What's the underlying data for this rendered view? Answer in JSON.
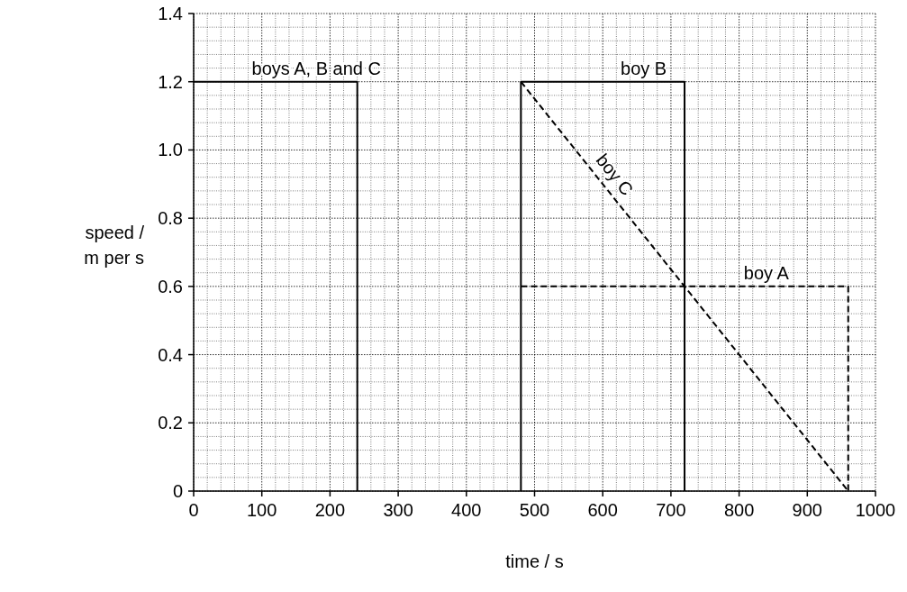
{
  "chart_data": {
    "type": "line",
    "xlabel": "time / s",
    "ylabel": "speed / m per s",
    "xlim": [
      0,
      1000
    ],
    "ylim": [
      0,
      1.4
    ],
    "xticks": [
      0,
      100,
      200,
      300,
      400,
      500,
      600,
      700,
      800,
      900,
      1000
    ],
    "yticks": [
      0,
      {
        "value": 0.2,
        "label": "0.2"
      },
      {
        "value": 0.4,
        "label": "0.4"
      },
      {
        "value": 0.6,
        "label": "0.6"
      },
      {
        "value": 0.8,
        "label": "0.8"
      },
      {
        "value": 1.0,
        "label": "1.0"
      },
      {
        "value": 1.2,
        "label": "1.2"
      },
      {
        "value": 1.4,
        "label": "1.4"
      }
    ],
    "grid": true,
    "marker": "none",
    "series": [
      {
        "name": "boys A, B and C",
        "color": "#000000",
        "line_style": "solid",
        "x": [
          0,
          240,
          240
        ],
        "values": [
          1.2,
          1.2,
          0
        ]
      },
      {
        "name": "boy B",
        "color": "#000000",
        "line_style": "solid",
        "x": [
          480,
          480,
          720,
          720
        ],
        "values": [
          0,
          1.2,
          1.2,
          0
        ]
      },
      {
        "name": "boy C",
        "color": "#000000",
        "line_style": "dashed",
        "x": [
          480,
          960
        ],
        "values": [
          1.2,
          0
        ]
      },
      {
        "name": "boy A",
        "color": "#000000",
        "line_style": "dashed",
        "x": [
          480,
          960,
          960
        ],
        "values": [
          0.6,
          0.6,
          0
        ]
      }
    ]
  }
}
